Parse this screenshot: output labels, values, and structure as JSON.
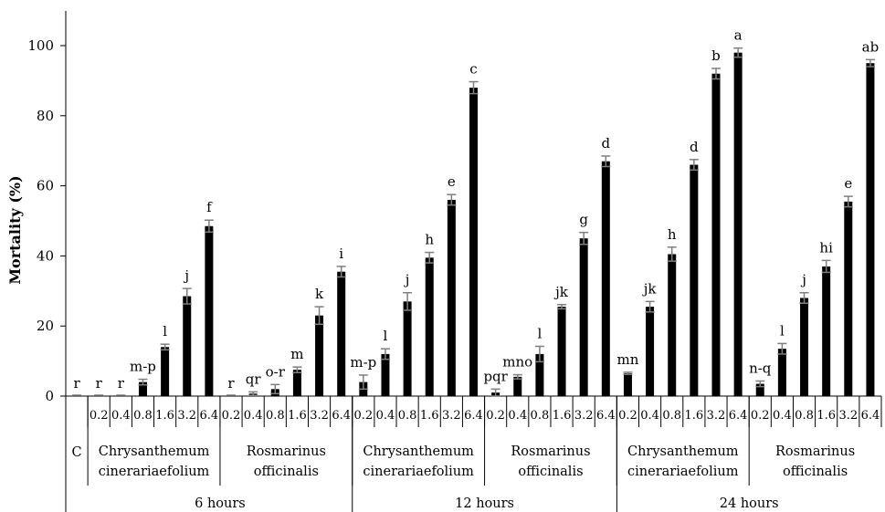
{
  "chart_data": {
    "type": "bar",
    "ylabel": "Mortality (%)",
    "ylim": [
      0,
      100
    ],
    "yticks": [
      0,
      20,
      40,
      60,
      80,
      100
    ],
    "grid": false,
    "legend": "none",
    "bar_color": "#000000",
    "errorbar_color": "#7f7f7f",
    "time_groups": [
      "6 hours",
      "12 hours",
      "24 hours"
    ],
    "control_label": "C",
    "species": [
      {
        "id": "chry",
        "line1": "Chrysanthemum",
        "line2": "cinerariaefolium"
      },
      {
        "id": "ros",
        "line1": "Rosmarinus",
        "line2": "officinalis"
      }
    ],
    "doses": [
      "0.2",
      "0.4",
      "0.8",
      "1.6",
      "3.2",
      "6.4"
    ],
    "bars": [
      {
        "time": "6 hours",
        "species": "C",
        "dose": "",
        "value": 0,
        "error": 0,
        "letter": "r"
      },
      {
        "time": "6 hours",
        "species": "chry",
        "dose": "0.2",
        "value": 0,
        "error": 0,
        "letter": "r"
      },
      {
        "time": "6 hours",
        "species": "chry",
        "dose": "0.4",
        "value": 0,
        "error": 0,
        "letter": "r"
      },
      {
        "time": "6 hours",
        "species": "chry",
        "dose": "0.8",
        "value": 4,
        "error": 0.8,
        "letter": "m-p"
      },
      {
        "time": "6 hours",
        "species": "chry",
        "dose": "1.6",
        "value": 14,
        "error": 0.8,
        "letter": "l"
      },
      {
        "time": "6 hours",
        "species": "chry",
        "dose": "3.2",
        "value": 28.5,
        "error": 2.2,
        "letter": "j"
      },
      {
        "time": "6 hours",
        "species": "chry",
        "dose": "6.4",
        "value": 48.5,
        "error": 1.7,
        "letter": "f"
      },
      {
        "time": "6 hours",
        "species": "ros",
        "dose": "0.2",
        "value": 0,
        "error": 0,
        "letter": "r"
      },
      {
        "time": "6 hours",
        "species": "ros",
        "dose": "0.4",
        "value": 0.7,
        "error": 0.5,
        "letter": "qr"
      },
      {
        "time": "6 hours",
        "species": "ros",
        "dose": "0.8",
        "value": 2,
        "error": 1.3,
        "letter": "o-r"
      },
      {
        "time": "6 hours",
        "species": "ros",
        "dose": "1.6",
        "value": 7.5,
        "error": 0.8,
        "letter": "m"
      },
      {
        "time": "6 hours",
        "species": "ros",
        "dose": "3.2",
        "value": 23,
        "error": 2.5,
        "letter": "k"
      },
      {
        "time": "6 hours",
        "species": "ros",
        "dose": "6.4",
        "value": 35.5,
        "error": 1.5,
        "letter": "i"
      },
      {
        "time": "12 hours",
        "species": "chry",
        "dose": "0.2",
        "value": 4,
        "error": 2,
        "letter": "m-p"
      },
      {
        "time": "12 hours",
        "species": "chry",
        "dose": "0.4",
        "value": 12,
        "error": 1.5,
        "letter": "l"
      },
      {
        "time": "12 hours",
        "species": "chry",
        "dose": "0.8",
        "value": 27,
        "error": 2.5,
        "letter": "j"
      },
      {
        "time": "12 hours",
        "species": "chry",
        "dose": "1.6",
        "value": 39.5,
        "error": 1.5,
        "letter": "h"
      },
      {
        "time": "12 hours",
        "species": "chry",
        "dose": "3.2",
        "value": 56,
        "error": 1.5,
        "letter": "e"
      },
      {
        "time": "12 hours",
        "species": "chry",
        "dose": "6.4",
        "value": 88,
        "error": 1.7,
        "letter": "c"
      },
      {
        "time": "12 hours",
        "species": "ros",
        "dose": "0.2",
        "value": 1,
        "error": 1,
        "letter": "pqr"
      },
      {
        "time": "12 hours",
        "species": "ros",
        "dose": "0.4",
        "value": 5.5,
        "error": 0.6,
        "letter": "mno"
      },
      {
        "time": "12 hours",
        "species": "ros",
        "dose": "0.8",
        "value": 12,
        "error": 2.2,
        "letter": "l"
      },
      {
        "time": "12 hours",
        "species": "ros",
        "dose": "1.6",
        "value": 25.5,
        "error": 0.6,
        "letter": "jk"
      },
      {
        "time": "12 hours",
        "species": "ros",
        "dose": "3.2",
        "value": 45,
        "error": 1.7,
        "letter": "g"
      },
      {
        "time": "12 hours",
        "species": "ros",
        "dose": "6.4",
        "value": 67,
        "error": 1.5,
        "letter": "d"
      },
      {
        "time": "24 hours",
        "species": "chry",
        "dose": "0.2",
        "value": 6.5,
        "error": 0.3,
        "letter": "mn"
      },
      {
        "time": "24 hours",
        "species": "chry",
        "dose": "0.4",
        "value": 25.5,
        "error": 1.5,
        "letter": "jk"
      },
      {
        "time": "24 hours",
        "species": "chry",
        "dose": "0.8",
        "value": 40.5,
        "error": 2,
        "letter": "h"
      },
      {
        "time": "24 hours",
        "species": "chry",
        "dose": "1.6",
        "value": 66,
        "error": 1.5,
        "letter": "d"
      },
      {
        "time": "24 hours",
        "species": "chry",
        "dose": "3.2",
        "value": 92,
        "error": 1.5,
        "letter": "b"
      },
      {
        "time": "24 hours",
        "species": "chry",
        "dose": "6.4",
        "value": 98,
        "error": 1.3,
        "letter": "a"
      },
      {
        "time": "24 hours",
        "species": "ros",
        "dose": "0.2",
        "value": 3.5,
        "error": 0.8,
        "letter": "n-q"
      },
      {
        "time": "24 hours",
        "species": "ros",
        "dose": "0.4",
        "value": 13.5,
        "error": 1.5,
        "letter": "l"
      },
      {
        "time": "24 hours",
        "species": "ros",
        "dose": "0.8",
        "value": 28,
        "error": 1.5,
        "letter": "j"
      },
      {
        "time": "24 hours",
        "species": "ros",
        "dose": "1.6",
        "value": 37,
        "error": 1.7,
        "letter": "hi"
      },
      {
        "time": "24 hours",
        "species": "ros",
        "dose": "3.2",
        "value": 55.5,
        "error": 1.5,
        "letter": "e"
      },
      {
        "time": "24 hours",
        "species": "ros",
        "dose": "6.4",
        "value": 95,
        "error": 1,
        "letter": "ab"
      }
    ]
  }
}
